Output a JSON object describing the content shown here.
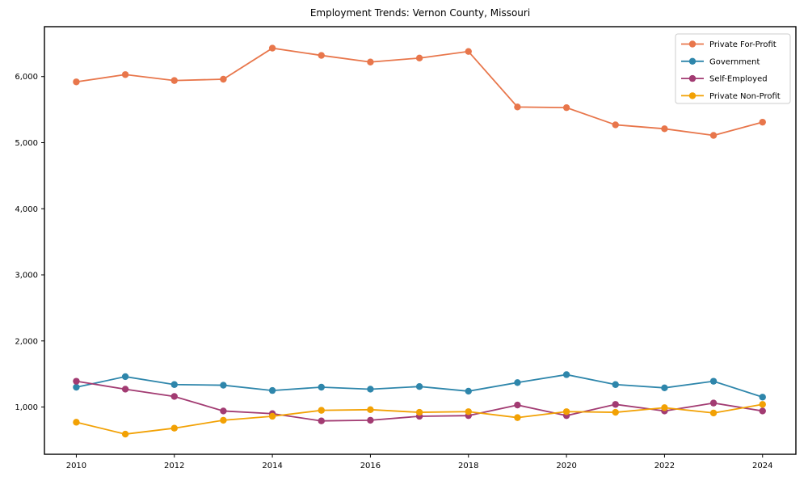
{
  "chart_data": {
    "type": "line",
    "title": "Employment Trends: Vernon County, Missouri",
    "xlabel": "",
    "ylabel": "",
    "x": [
      2010,
      2011,
      2012,
      2013,
      2014,
      2015,
      2016,
      2017,
      2018,
      2019,
      2020,
      2021,
      2022,
      2023,
      2024
    ],
    "x_ticks": [
      2010,
      2012,
      2014,
      2016,
      2018,
      2020,
      2022,
      2024
    ],
    "x_tick_labels": [
      "2010",
      "2012",
      "2014",
      "2016",
      "2018",
      "2020",
      "2022",
      "2024"
    ],
    "y_ticks": [
      1000,
      2000,
      3000,
      4000,
      5000,
      6000
    ],
    "y_tick_labels": [
      "1,000",
      "2,000",
      "3,000",
      "4,000",
      "5,000",
      "6,000"
    ],
    "xlim": [
      2009.35,
      2024.68
    ],
    "ylim": [
      285,
      6755
    ],
    "grid": false,
    "legend_position": "upper right",
    "series": [
      {
        "name": "Private For-Profit",
        "color": "#e8764b",
        "values": [
          5920,
          6030,
          5940,
          5960,
          6430,
          6320,
          6220,
          6280,
          6380,
          5540,
          5530,
          5270,
          5210,
          5110,
          5310
        ]
      },
      {
        "name": "Government",
        "color": "#2e86ab",
        "values": [
          1300,
          1460,
          1340,
          1330,
          1250,
          1300,
          1270,
          1310,
          1240,
          1370,
          1490,
          1340,
          1290,
          1390,
          1150
        ]
      },
      {
        "name": "Self-Employed",
        "color": "#a23b72",
        "values": [
          1390,
          1270,
          1160,
          940,
          900,
          790,
          800,
          860,
          870,
          1030,
          870,
          1040,
          940,
          1060,
          940
        ]
      },
      {
        "name": "Private Non-Profit",
        "color": "#f2a104",
        "values": [
          770,
          590,
          680,
          800,
          860,
          950,
          960,
          920,
          930,
          840,
          930,
          920,
          990,
          910,
          1040
        ]
      }
    ]
  }
}
